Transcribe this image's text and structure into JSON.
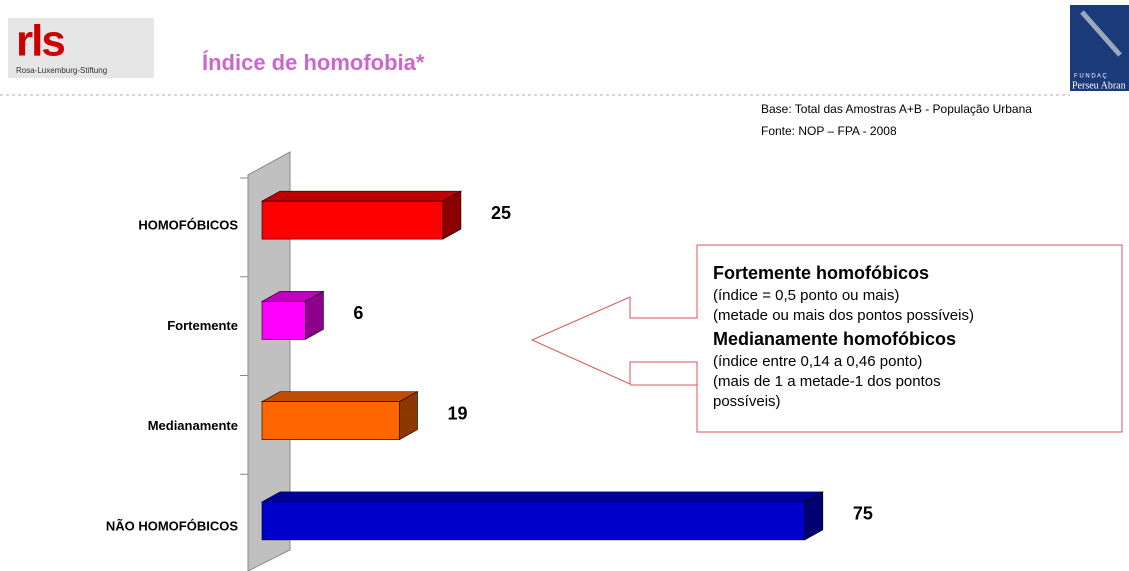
{
  "header": {
    "logo": "rls",
    "logo_subtitle": "Rosa-Luxemburg-Stiftung",
    "right_logo_top": "F U N D A Ç",
    "right_logo_bottom": "Perseu Abran"
  },
  "chart_data": {
    "type": "bar3d",
    "orientation": "horizontal",
    "title": "Índice de homofobia*",
    "notes": [
      "Base: Total das Amostras A+B - População Urbana",
      "Fonte: NOP – FPA - 2008"
    ],
    "categories": [
      "HOMOFÓBICOS",
      "Fortemente",
      "Medianamente",
      "NÃO HOMOFÓBICOS"
    ],
    "values": [
      25,
      6,
      19,
      75
    ],
    "colors": [
      "#ff0000",
      "#ff00ff",
      "#ff6600",
      "#0000cc"
    ],
    "xlim": [
      0,
      80
    ]
  },
  "callout": [
    {
      "heading": "Fortemente homofóbicos",
      "lines": [
        "(índice = 0,5 ponto ou mais)",
        "(metade ou mais dos pontos possíveis)"
      ]
    },
    {
      "heading": "Medianamente homofóbicos",
      "lines": [
        "(índice entre 0,14 a 0,46 ponto)",
        "(mais de 1 a metade-1 dos pontos",
        "possíveis)"
      ]
    }
  ]
}
